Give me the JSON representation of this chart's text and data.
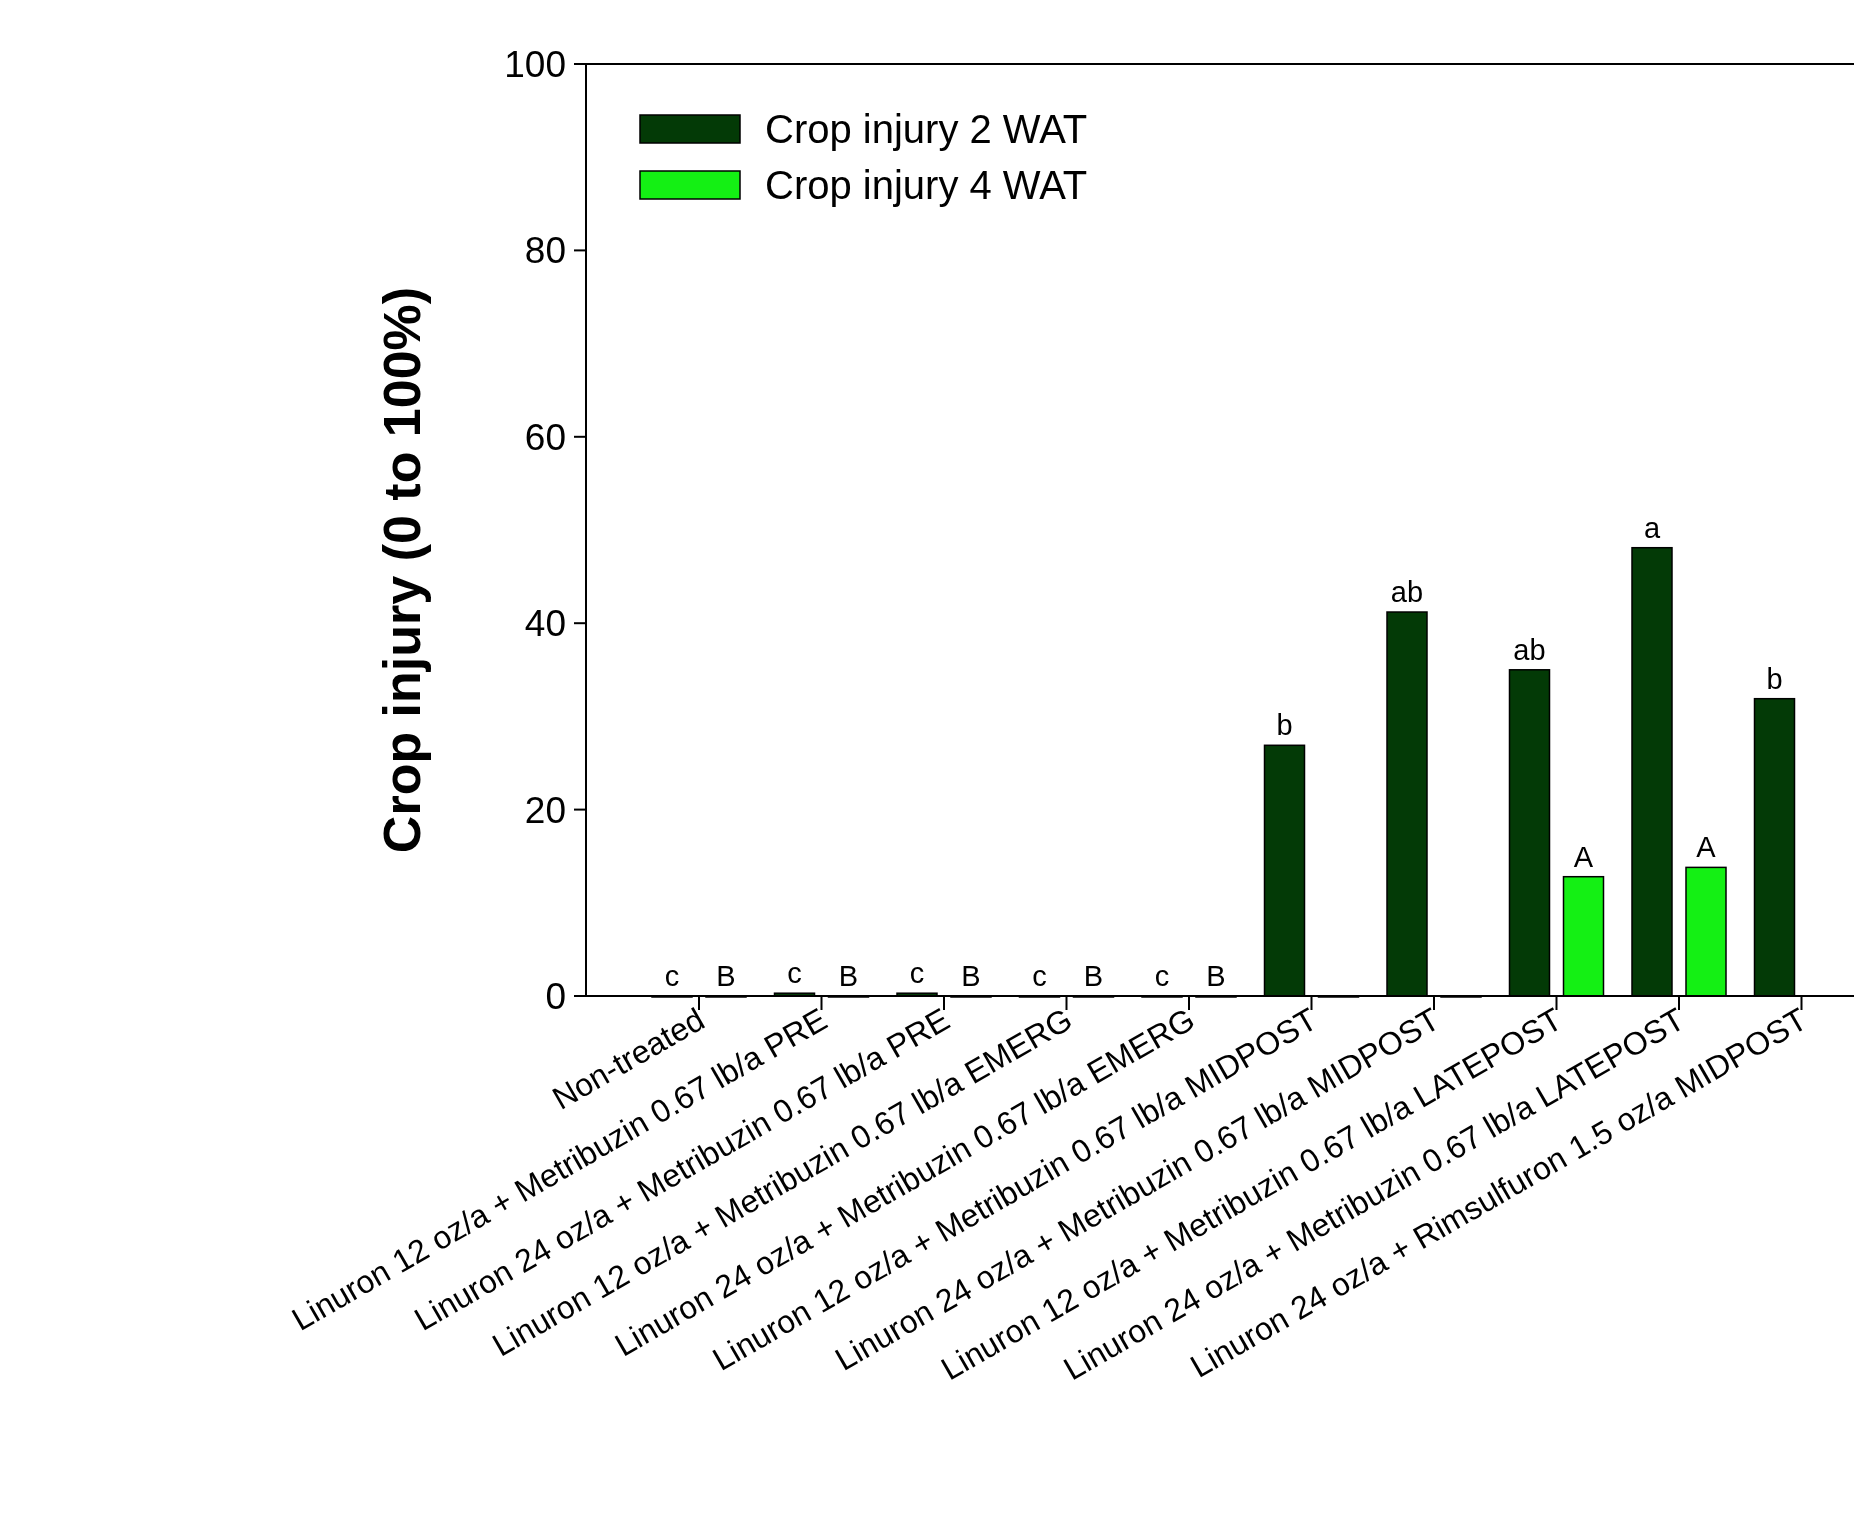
{
  "chart_data": {
    "type": "bar",
    "ylabel": "Crop injury (0 to 100%)",
    "categories": [
      "Non-treated",
      "Linuron 12 oz/a + Metribuzin 0.67 lb/a PRE",
      "Linuron 24 oz/a + Metribuzin 0.67 lb/a PRE",
      "Linuron 12 oz/a + Metribuzin 0.67 lb/a EMERG",
      "Linuron 24 oz/a + Metribuzin 0.67 lb/a EMERG",
      "Linuron 12 oz/a + Metribuzin 0.67 lb/a MIDPOST",
      "Linuron 24 oz/a + Metribuzin 0.67 lb/a MIDPOST",
      "Linuron 12 oz/a + Metribuzin 0.67 lb/a LATEPOST",
      "Linuron 24 oz/a + Metribuzin 0.67 lb/a LATEPOST",
      "Linuron 24 oz/a + Rimsulfuron 1.5 oz/a MIDPOST"
    ],
    "series": [
      {
        "name": "Crop injury 2 WAT",
        "color": "#033a06",
        "values": [
          0,
          0.3,
          0.3,
          0,
          0,
          26.9,
          41.2,
          35,
          48.1,
          31.9
        ],
        "value_labels": [
          "c",
          "c",
          "c",
          "c",
          "c",
          "b",
          "ab",
          "ab",
          "a",
          "b"
        ]
      },
      {
        "name": "Crop injury 4 WAT",
        "color": "#14f014",
        "values": [
          0,
          0,
          0,
          0,
          0,
          0,
          0,
          12.8,
          13.8,
          null
        ],
        "value_labels": [
          "B",
          "B",
          "B",
          "B",
          "B",
          null,
          null,
          "A",
          "A",
          null
        ]
      }
    ],
    "ylim": [
      0,
      100
    ],
    "yticks": [
      0,
      20,
      40,
      60,
      80,
      100
    ],
    "grid": false,
    "legend": "top left"
  }
}
